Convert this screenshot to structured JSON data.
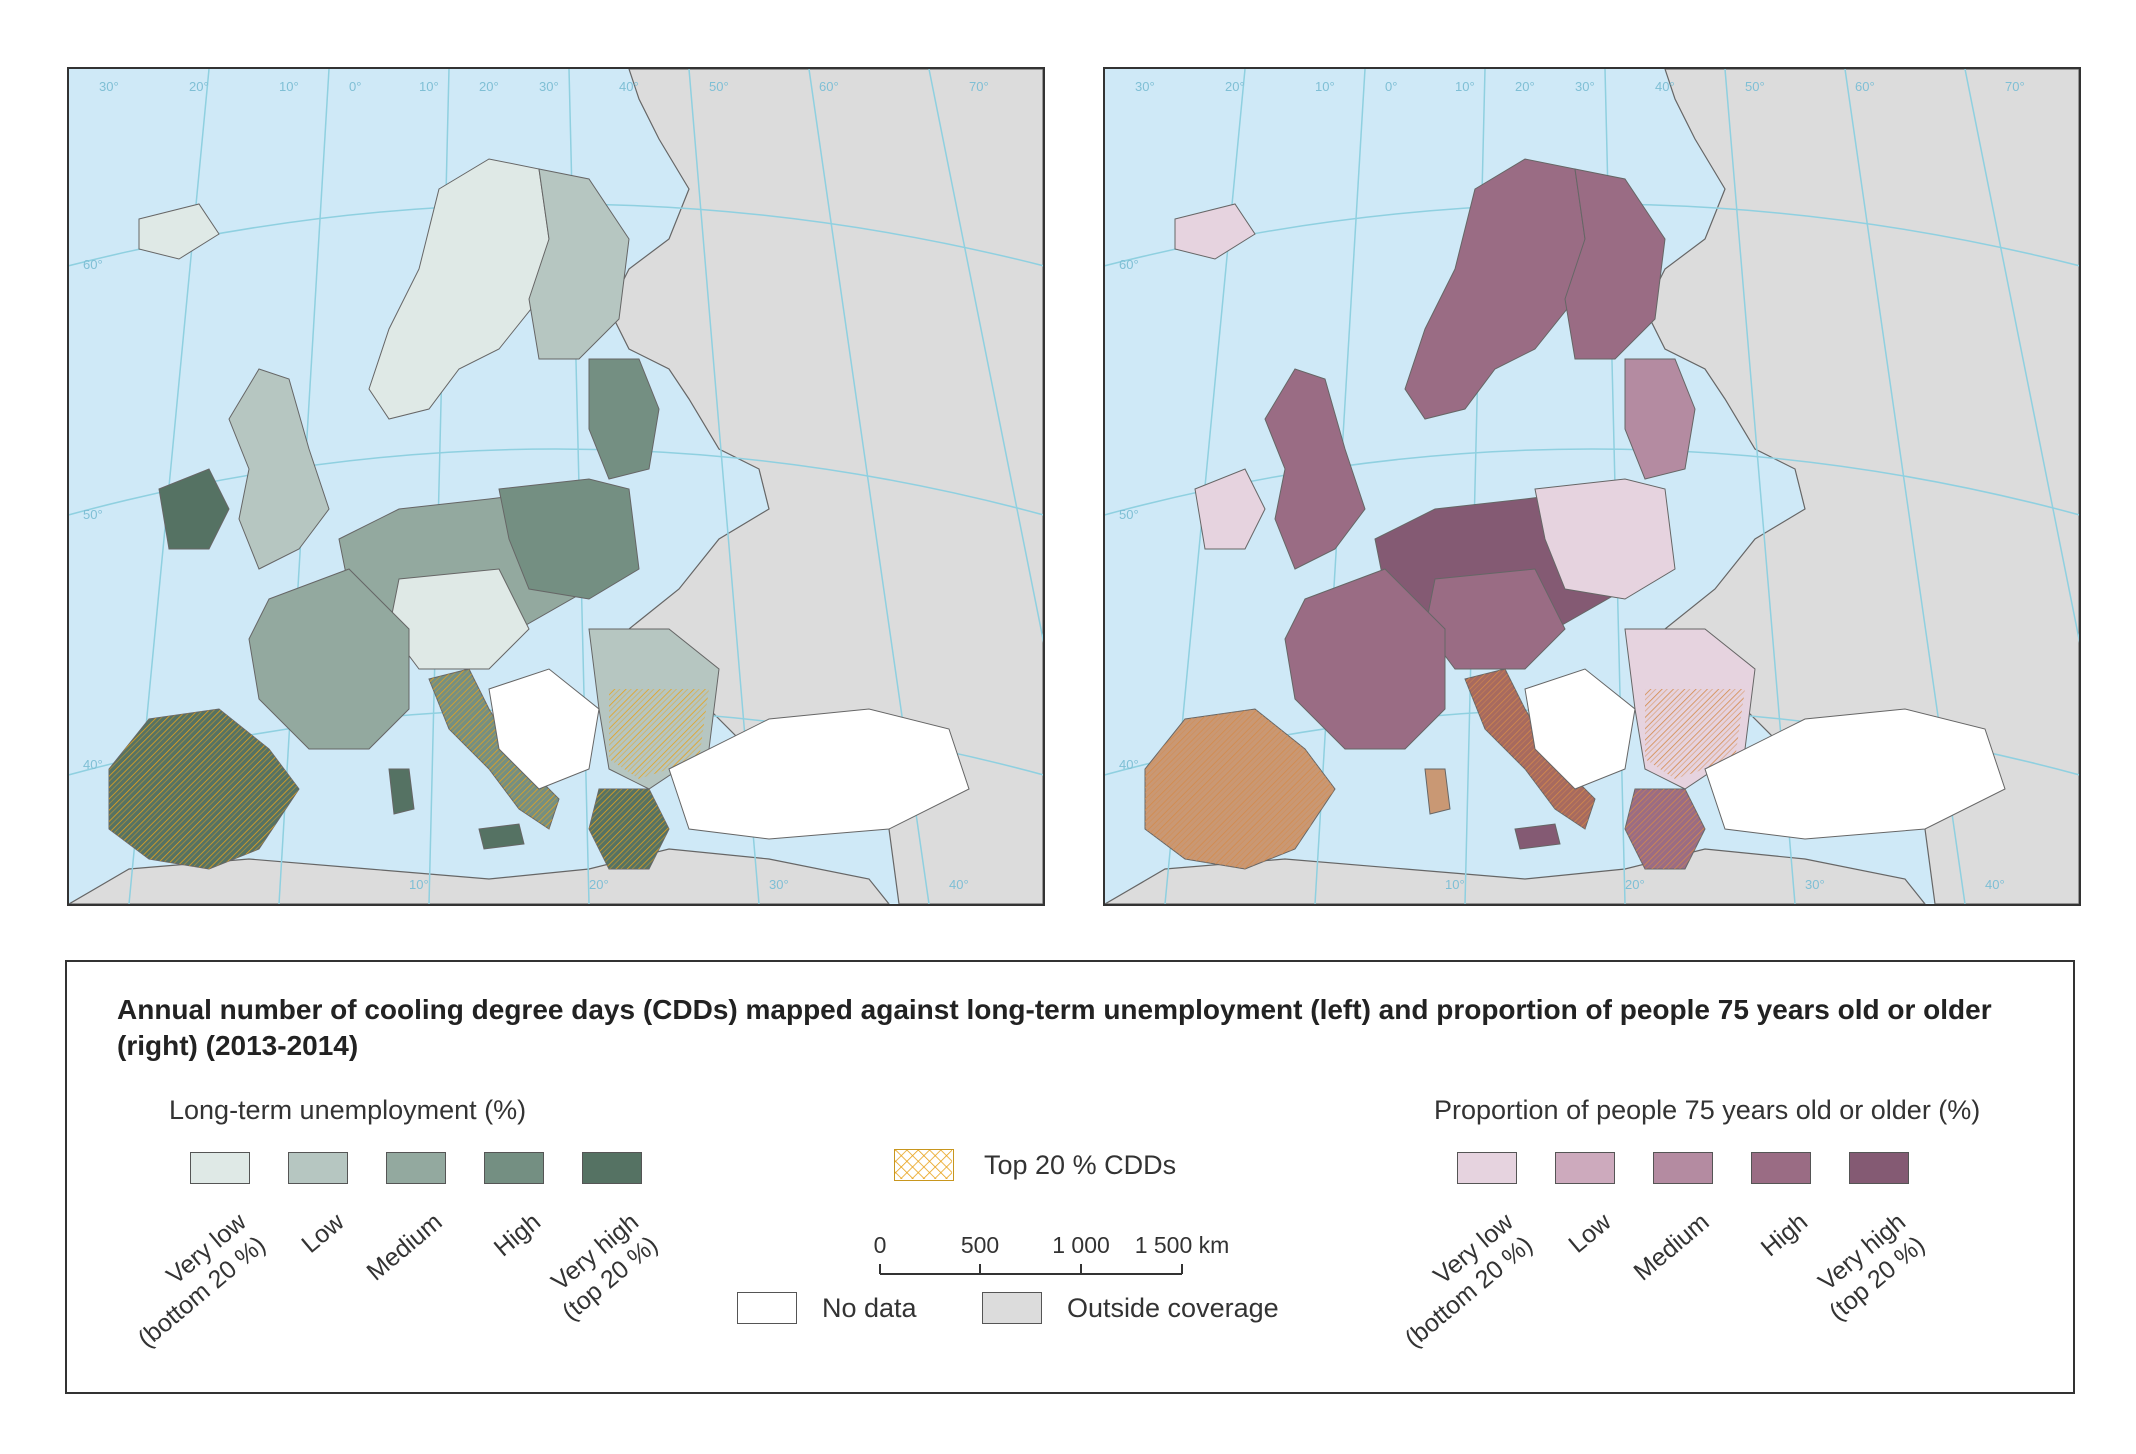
{
  "map": {
    "title": "Annual number of cooling degree days (CDDs) mapped against long-term unemployment (left) and proportion of people 75 years old or older (right) (2013-2014)",
    "panels": [
      {
        "id": "left",
        "theme": "Long-term unemployment (%)",
        "palette": [
          "#dfe9e6",
          "#b6c6c1",
          "#93a99f",
          "#748f82",
          "#557263"
        ]
      },
      {
        "id": "right",
        "theme": "Proportion of people 75 years old or older (%)",
        "palette": [
          "#e6d3df",
          "#cdaabd",
          "#b48ba1",
          "#9a6c84",
          "#845a73"
        ]
      }
    ],
    "graticule_labels": {
      "longitudes_top": [
        "30°",
        "20°",
        "10°",
        "0°",
        "10°",
        "20°",
        "30°",
        "40°",
        "50°",
        "60°",
        "70°"
      ],
      "latitudes": [
        "60°",
        "50°",
        "40°"
      ],
      "longitudes_bottom": [
        "10°",
        "20°",
        "30°",
        "40°"
      ]
    },
    "colors": {
      "sea": "#cfe9f7",
      "outside": "#dcdcdc",
      "no_data": "#ffffff",
      "cdd_hatch": "#e8a21a",
      "graticule": "#8fd0e0",
      "border": "#666666"
    }
  },
  "legend": {
    "left": {
      "heading": "Long-term unemployment (%)",
      "classes": [
        "Very low (bottom 20 %)",
        "Low",
        "Medium",
        "High",
        "Very high (top 20 %)"
      ],
      "class_lines": [
        [
          "Very low",
          "(bottom 20 %)"
        ],
        [
          "Low"
        ],
        [
          "Medium"
        ],
        [
          "High"
        ],
        [
          "Very high",
          "(top 20 %)"
        ]
      ],
      "colors": [
        "#dfe9e6",
        "#b6c6c1",
        "#93a99f",
        "#748f82",
        "#557263"
      ]
    },
    "right": {
      "heading": "Proportion of people 75 years old or older (%)",
      "classes": [
        "Very low (bottom 20 %)",
        "Low",
        "Medium",
        "High",
        "Very high (top 20 %)"
      ],
      "class_lines": [
        [
          "Very low",
          "(bottom 20 %)"
        ],
        [
          "Low"
        ],
        [
          "Medium"
        ],
        [
          "High"
        ],
        [
          "Very high",
          "(top 20 %)"
        ]
      ],
      "colors": [
        "#e6d3df",
        "#cdaabd",
        "#b48ba1",
        "#9a6c84",
        "#845a73"
      ]
    },
    "cdd": {
      "label": "Top 20 % CDDs"
    },
    "no_data": {
      "label": "No data"
    },
    "outside": {
      "label": "Outside coverage"
    },
    "scale": {
      "ticks": [
        "0",
        "500",
        "1 000",
        "1 500 km"
      ]
    }
  }
}
